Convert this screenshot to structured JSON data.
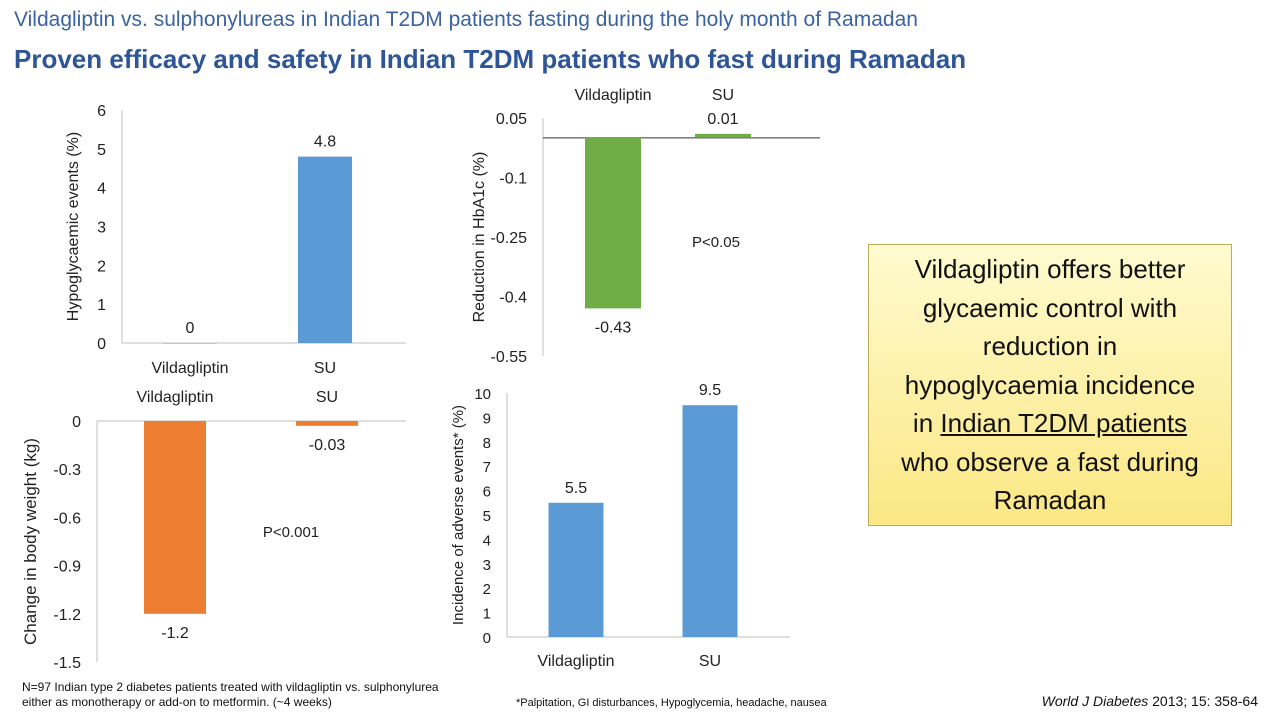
{
  "slide": {
    "kicker": "Vildagliptin vs. sulphonylureas in Indian T2DM patients fasting during the holy month of Ramadan",
    "headline": "Proven efficacy and safety in Indian T2DM patients who fast during Ramadan"
  },
  "chart_data": [
    {
      "id": "hypo",
      "type": "bar",
      "categories": [
        "Vildagliptin",
        "SU"
      ],
      "values": [
        0,
        4.8
      ],
      "value_labels": [
        "0",
        "4.8"
      ],
      "ylabel": "Hypoglycaemic events (%)",
      "ylim": [
        0,
        6
      ],
      "yticks": [
        0,
        1,
        2,
        3,
        4,
        5,
        6
      ],
      "ytick_labels": [
        "0",
        "1",
        "2",
        "3",
        "4",
        "5",
        "6"
      ],
      "category_axis": "bottom",
      "colors": [
        "#5b9bd5",
        "#5b9bd5"
      ],
      "grid": false
    },
    {
      "id": "hba1c",
      "type": "bar",
      "categories": [
        "Vildagliptin",
        "SU"
      ],
      "values": [
        -0.43,
        0.01
      ],
      "value_labels": [
        "-0.43",
        "0.01"
      ],
      "ylabel": "Reduction in HbA1c (%)",
      "ylim": [
        -0.55,
        0.05
      ],
      "yticks": [
        0.05,
        -0.1,
        -0.25,
        -0.4,
        -0.55
      ],
      "ytick_labels": [
        "0.05",
        "-0.1",
        "-0.25",
        "-0.4",
        "-0.55"
      ],
      "category_axis": "top",
      "annotation": "P<0.05",
      "colors": [
        "#70ad47",
        "#70ad47"
      ],
      "grid": false
    },
    {
      "id": "weight",
      "type": "bar",
      "categories": [
        "Vildagliptin",
        "SU"
      ],
      "values": [
        -1.2,
        -0.03
      ],
      "value_labels": [
        "-1.2",
        "-0.03"
      ],
      "ylabel": "Change in body weight (kg)",
      "ylim": [
        -1.5,
        0
      ],
      "yticks": [
        0,
        -0.3,
        -0.6,
        -0.9,
        -1.2,
        -1.5
      ],
      "ytick_labels": [
        "0",
        "-0.3",
        "-0.6",
        "-0.9",
        "-1.2",
        "-1.5"
      ],
      "category_axis": "top",
      "annotation": "P<0.001",
      "colors": [
        "#ed7d31",
        "#ed7d31"
      ],
      "grid": false
    },
    {
      "id": "ae",
      "type": "bar",
      "categories": [
        "Vildagliptin",
        "SU"
      ],
      "values": [
        5.5,
        9.5
      ],
      "value_labels": [
        "5.5",
        "9.5"
      ],
      "ylabel": "Incidence of adverse events* (%)",
      "ylim": [
        0,
        10
      ],
      "yticks": [
        0,
        1,
        2,
        3,
        4,
        5,
        6,
        7,
        8,
        9,
        10
      ],
      "ytick_labels": [
        "0",
        "1",
        "2",
        "3",
        "4",
        "5",
        "6",
        "7",
        "8",
        "9",
        "10"
      ],
      "category_axis": "bottom",
      "colors": [
        "#5b9bd5",
        "#5b9bd5"
      ],
      "grid": false
    }
  ],
  "callout": {
    "line1": "Vildagliptin offers better",
    "line2": "glycaemic control with",
    "line3": "reduction in",
    "line4": "hypoglycaemia incidence",
    "line5_prefix": "in ",
    "line5_underlined": "Indian T2DM patients",
    "line6": "who observe a fast during",
    "line7": "Ramadan"
  },
  "footnotes": {
    "study_line1": "N=97 Indian type 2 diabetes patients treated with vildagliptin vs. sulphonylurea",
    "study_line2": "either as monotherapy or add-on to metformin. (~4 weeks)",
    "ae_note": "*Palpitation, GI disturbances, Hypoglycemia, headache, nausea",
    "citation_journal": "World J Diabetes",
    "citation_rest": " 2013; 15: 358-64"
  }
}
